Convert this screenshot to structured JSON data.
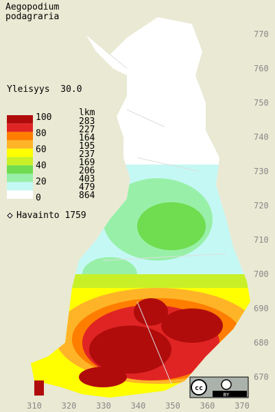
{
  "header": {
    "title": [
      "Aegopodium",
      "podagraria"
    ],
    "frequency": "Yleisyys  30.0"
  },
  "legend": {
    "scale_labels": [
      "100",
      "80",
      "60",
      "40",
      "20",
      "0"
    ],
    "count_header": "lkm",
    "counts": [
      "283",
      "227",
      "164",
      "195",
      "237",
      "169",
      "206",
      "403",
      "479",
      "864"
    ],
    "colors": [
      "#b00c0c",
      "#e02424",
      "#ff7e00",
      "#ffb428",
      "#ffff00",
      "#c8f028",
      "#70dc50",
      "#98f0a8",
      "#c4f8f4",
      "#ffffff"
    ]
  },
  "observations": "Havainto 1759",
  "grid_labels": {
    "north": [
      "770",
      "760",
      "750",
      "740",
      "730",
      "720",
      "710",
      "700",
      "690",
      "680",
      "670"
    ],
    "east": [
      "310",
      "320",
      "330",
      "340",
      "350",
      "360",
      "370"
    ]
  },
  "license": {
    "badge": "cc",
    "by": "BY"
  }
}
